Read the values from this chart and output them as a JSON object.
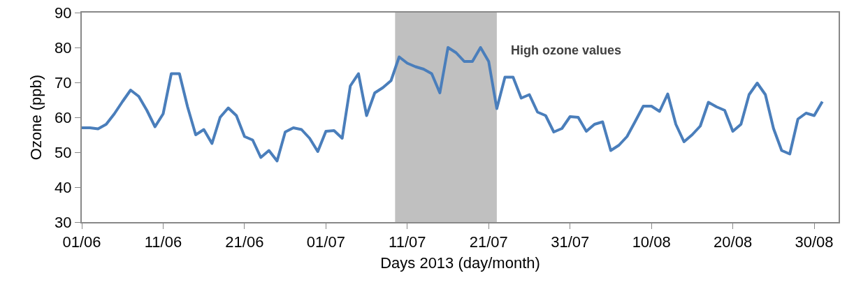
{
  "chart_data": {
    "type": "line",
    "xlabel": "Days 2013 (day/month)",
    "ylabel": "Ozone (ppb)",
    "x": [
      "2013-06-01",
      "2013-06-02",
      "2013-06-03",
      "2013-06-04",
      "2013-06-05",
      "2013-06-06",
      "2013-06-07",
      "2013-06-08",
      "2013-06-09",
      "2013-06-10",
      "2013-06-11",
      "2013-06-12",
      "2013-06-13",
      "2013-06-14",
      "2013-06-15",
      "2013-06-16",
      "2013-06-17",
      "2013-06-18",
      "2013-06-19",
      "2013-06-20",
      "2013-06-21",
      "2013-06-22",
      "2013-06-23",
      "2013-06-24",
      "2013-06-25",
      "2013-06-26",
      "2013-06-27",
      "2013-06-28",
      "2013-06-29",
      "2013-06-30",
      "2013-07-01",
      "2013-07-02",
      "2013-07-03",
      "2013-07-04",
      "2013-07-05",
      "2013-07-06",
      "2013-07-07",
      "2013-07-08",
      "2013-07-09",
      "2013-07-10",
      "2013-07-11",
      "2013-07-12",
      "2013-07-13",
      "2013-07-14",
      "2013-07-15",
      "2013-07-16",
      "2013-07-17",
      "2013-07-18",
      "2013-07-19",
      "2013-07-20",
      "2013-07-21",
      "2013-07-22",
      "2013-07-23",
      "2013-07-24",
      "2013-07-25",
      "2013-07-26",
      "2013-07-27",
      "2013-07-28",
      "2013-07-29",
      "2013-07-30",
      "2013-07-31",
      "2013-08-01",
      "2013-08-02",
      "2013-08-03",
      "2013-08-04",
      "2013-08-05",
      "2013-08-06",
      "2013-08-07",
      "2013-08-08",
      "2013-08-09",
      "2013-08-10",
      "2013-08-11",
      "2013-08-12",
      "2013-08-13",
      "2013-08-14",
      "2013-08-15",
      "2013-08-16",
      "2013-08-17",
      "2013-08-18",
      "2013-08-19",
      "2013-08-20",
      "2013-08-21",
      "2013-08-22",
      "2013-08-23",
      "2013-08-24",
      "2013-08-25",
      "2013-08-26",
      "2013-08-27",
      "2013-08-28",
      "2013-08-29",
      "2013-08-30",
      "2013-08-31"
    ],
    "series": [
      {
        "color": "#4a7ebb",
        "values": [
          57,
          57,
          56.7,
          58,
          61,
          64.5,
          67.8,
          66,
          62,
          57.3,
          61,
          72.5,
          72.5,
          63,
          55,
          56.5,
          52.5,
          60,
          62.7,
          60.5,
          54.5,
          53.5,
          48.5,
          50.5,
          47.5,
          55.8,
          57,
          56.5,
          54,
          50.2,
          56,
          56.2,
          54,
          69,
          72.5,
          60.5,
          67,
          68.5,
          70.5,
          77.3,
          75.5,
          74.5,
          73.8,
          72.5,
          67,
          80,
          78.5,
          76,
          76,
          80,
          76,
          62.5,
          71.5,
          71.5,
          65.5,
          66.5,
          61.5,
          60.5,
          55.8,
          56.8,
          60.2,
          60,
          56,
          58,
          58.7,
          50.5,
          52,
          54.5,
          58.8,
          63.2,
          63.2,
          61.7,
          66.7,
          58,
          53,
          55,
          57.5,
          64.3,
          63,
          62,
          56,
          58,
          66.5,
          69.8,
          66.5,
          56.8,
          50.5,
          49.5,
          59.5,
          61.2,
          60.5,
          64.5
        ]
      }
    ],
    "xlim": [
      "2013-06-01",
      "2013-09-02"
    ],
    "xticks": [
      {
        "value": "2013-06-01",
        "label": "01/06"
      },
      {
        "value": "2013-06-11",
        "label": "11/06"
      },
      {
        "value": "2013-06-21",
        "label": "21/06"
      },
      {
        "value": "2013-07-01",
        "label": "01/07"
      },
      {
        "value": "2013-07-11",
        "label": "11/07"
      },
      {
        "value": "2013-07-21",
        "label": "21/07"
      },
      {
        "value": "2013-07-31",
        "label": "31/07"
      },
      {
        "value": "2013-08-10",
        "label": "10/08"
      },
      {
        "value": "2013-08-20",
        "label": "20/08"
      },
      {
        "value": "2013-08-30",
        "label": "30/08"
      }
    ],
    "ylim": [
      30,
      90
    ],
    "yticks": [
      30,
      40,
      50,
      60,
      70,
      80,
      90
    ],
    "bands": [
      {
        "axis": "x",
        "from": "2013-07-09T12:00",
        "to": "2013-07-22",
        "label": "High ozone values",
        "color": "#c0c0c0"
      }
    ],
    "grid": false,
    "marker": "none",
    "line_style": "solid"
  }
}
